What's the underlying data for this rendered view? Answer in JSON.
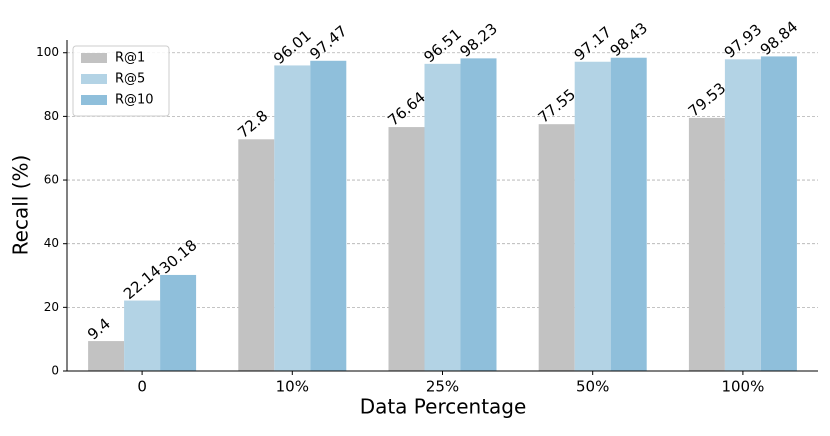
{
  "chart_data": {
    "type": "bar",
    "x_label": "Data Percentage",
    "y_label": "Recall (%)",
    "categories": [
      "0",
      "10%",
      "25%",
      "50%",
      "100%"
    ],
    "series": [
      {
        "name": "R@1",
        "color": "#c2c2c2",
        "values": [
          9.4,
          72.8,
          76.64,
          77.55,
          79.53
        ]
      },
      {
        "name": "R@5",
        "color": "#b3d3e5",
        "values": [
          22.14,
          96.01,
          96.51,
          97.17,
          97.93
        ]
      },
      {
        "name": "R@10",
        "color": "#8fbfdb",
        "values": [
          30.18,
          97.47,
          98.23,
          98.43,
          98.84
        ]
      }
    ],
    "ylim": [
      0,
      104
    ],
    "yticks": [
      0,
      20,
      40,
      60,
      80,
      100
    ],
    "grid": true,
    "legend": "upper left"
  }
}
